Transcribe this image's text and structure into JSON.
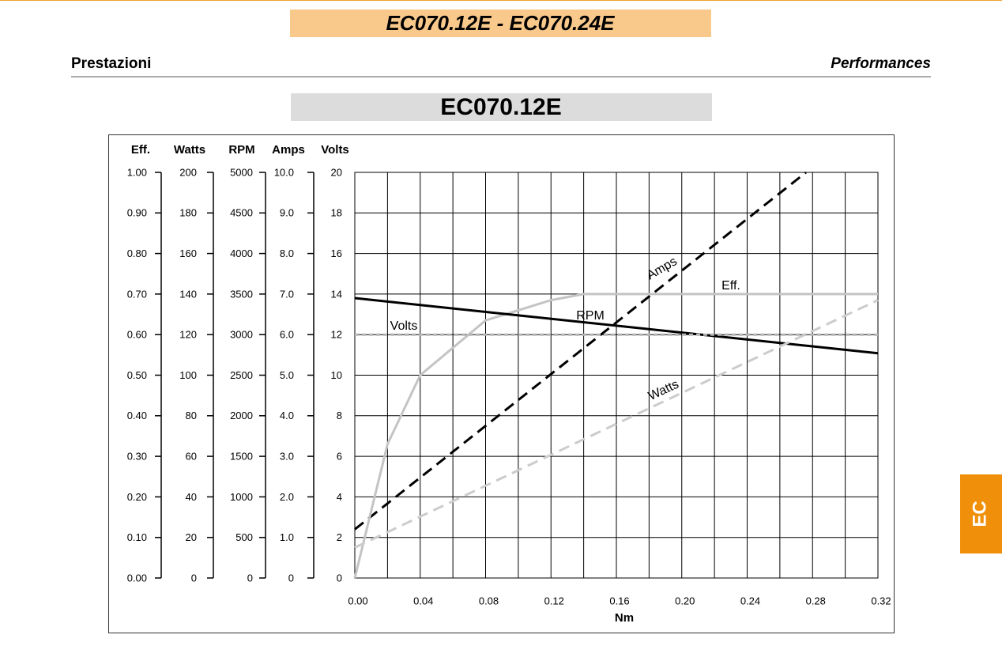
{
  "header": {
    "title": "EC070.12E - EC070.24E",
    "left": "Prestazioni",
    "right": "Performances",
    "tab": "EC"
  },
  "chart_data": {
    "type": "line",
    "title": "EC070.12E",
    "x_label": "Nm",
    "xlim": [
      0,
      0.32
    ],
    "xticks": [
      {
        "value": 0,
        "label": "0.00"
      },
      {
        "value": 0.04,
        "label": "0.04"
      },
      {
        "value": 0.08,
        "label": "0.08"
      },
      {
        "value": 0.12,
        "label": "0.12"
      },
      {
        "value": 0.16,
        "label": "0.16"
      },
      {
        "value": 0.2,
        "label": "0.20"
      },
      {
        "value": 0.24,
        "label": "0.24"
      },
      {
        "value": 0.28,
        "label": "0.28"
      },
      {
        "value": 0.32,
        "label": "0.32"
      }
    ],
    "x_minor_grid": [
      0.02,
      0.06,
      0.1,
      0.14,
      0.18,
      0.22,
      0.26,
      0.3
    ],
    "grid": true,
    "y_axes": [
      {
        "label": "Eff.",
        "lim": [
          0,
          1
        ],
        "ticks": [
          {
            "value": 0,
            "label": "0.00"
          },
          {
            "value": 0.1,
            "label": "0.10"
          },
          {
            "value": 0.2,
            "label": "0.20"
          },
          {
            "value": 0.3,
            "label": "0.30"
          },
          {
            "value": 0.4,
            "label": "0.40"
          },
          {
            "value": 0.5,
            "label": "0.50"
          },
          {
            "value": 0.6,
            "label": "0.60"
          },
          {
            "value": 0.7,
            "label": "0.70"
          },
          {
            "value": 0.8,
            "label": "0.80"
          },
          {
            "value": 0.9,
            "label": "0.90"
          },
          {
            "value": 1,
            "label": "1.00"
          }
        ]
      },
      {
        "label": "Watts",
        "lim": [
          0,
          200
        ],
        "ticks": [
          0,
          20,
          40,
          60,
          80,
          100,
          120,
          140,
          160,
          180,
          200
        ]
      },
      {
        "label": "RPM",
        "lim": [
          0,
          5000
        ],
        "ticks": [
          0,
          500,
          1000,
          1500,
          2000,
          2500,
          3000,
          3500,
          4000,
          4500,
          5000
        ]
      },
      {
        "label": "Amps",
        "lim": [
          0,
          10
        ],
        "ticks": [
          0,
          {
            "value": 1,
            "label": "1.0"
          },
          {
            "value": 2,
            "label": "2.0"
          },
          {
            "value": 3,
            "label": "3.0"
          },
          {
            "value": 4,
            "label": "4.0"
          },
          {
            "value": 5,
            "label": "5.0"
          },
          {
            "value": 6,
            "label": "6.0"
          },
          {
            "value": 7,
            "label": "7.0"
          },
          {
            "value": 8,
            "label": "8.0"
          },
          {
            "value": 9,
            "label": "9.0"
          },
          {
            "value": 10,
            "label": "10.0"
          }
        ]
      },
      {
        "label": "Volts",
        "lim": [
          0,
          20
        ],
        "ticks": [
          0,
          2,
          4,
          6,
          8,
          10,
          12,
          14,
          16,
          18,
          20
        ]
      }
    ],
    "series": [
      {
        "name": "Amps",
        "axis": "Amps",
        "color": "#000000",
        "dash": "dashed",
        "x": [
          0,
          0.276
        ],
        "values": [
          1.2,
          10.0
        ]
      },
      {
        "name": "Eff.",
        "axis": "Eff.",
        "color": "#c4c4c4",
        "dash": "solid",
        "x": [
          0,
          0.02,
          0.04,
          0.08,
          0.12,
          0.14,
          0.32
        ],
        "values": [
          0,
          0.33,
          0.5,
          0.635,
          0.685,
          0.7,
          0.7
        ]
      },
      {
        "name": "RPM",
        "axis": "RPM",
        "color": "#000000",
        "dash": "solid",
        "x": [
          0,
          0.32
        ],
        "values": [
          3450,
          2770
        ]
      },
      {
        "name": "Volts",
        "axis": "Volts",
        "color": "#b4b4b4",
        "dash": "dotted",
        "x": [
          0,
          0.32
        ],
        "values": [
          12,
          12
        ]
      },
      {
        "name": "Watts",
        "axis": "Watts",
        "color": "#cccccc",
        "dash": "dashed",
        "x": [
          0,
          0.32
        ],
        "values": [
          15,
          137
        ]
      }
    ]
  }
}
